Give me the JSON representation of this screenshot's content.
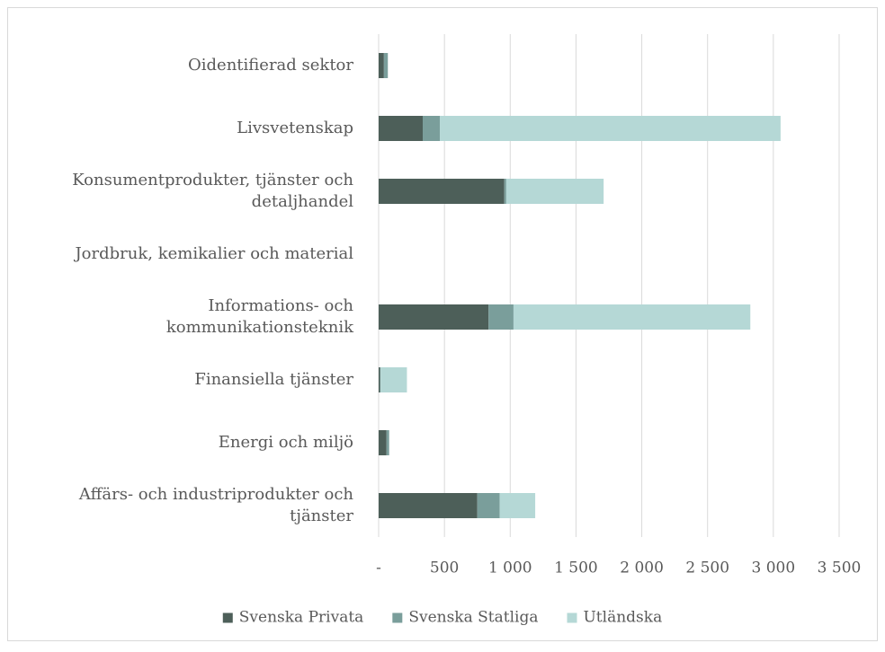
{
  "chart_data": {
    "type": "stacked_barh",
    "categories": [
      "Oidentifierad sektor",
      "Livsvetenskap",
      "Konsumentprodukter, tjänster och detaljhandel",
      "Jordbruk, kemikalier och material",
      "Informations- och kommunikationsteknik",
      "Finansiella tjänster",
      "Energi och miljö",
      "Affärs- och industriprodukter och tjänster"
    ],
    "series": [
      {
        "name": "Svenska Privata",
        "color": "#4d5f59",
        "values": [
          40,
          335,
          955,
          0,
          835,
          10,
          60,
          750
        ]
      },
      {
        "name": "Svenska Statliga",
        "color": "#7a9e9b",
        "values": [
          30,
          130,
          15,
          0,
          190,
          5,
          20,
          170
        ]
      },
      {
        "name": "Utländska",
        "color": "#b5d8d6",
        "values": [
          0,
          2590,
          740,
          0,
          1800,
          200,
          0,
          270
        ]
      }
    ],
    "xlim": [
      0,
      3500
    ],
    "xticks": [
      {
        "value": 0,
        "label": "-"
      },
      500,
      {
        "value": 1000,
        "label": "1 000"
      },
      {
        "value": 1500,
        "label": "1 500"
      },
      {
        "value": 2000,
        "label": "2 000"
      },
      {
        "value": 2500,
        "label": "2 500"
      },
      {
        "value": 3000,
        "label": "3 000"
      },
      {
        "value": 3500,
        "label": "3 500"
      }
    ],
    "grid": true,
    "legend": "bottom"
  }
}
